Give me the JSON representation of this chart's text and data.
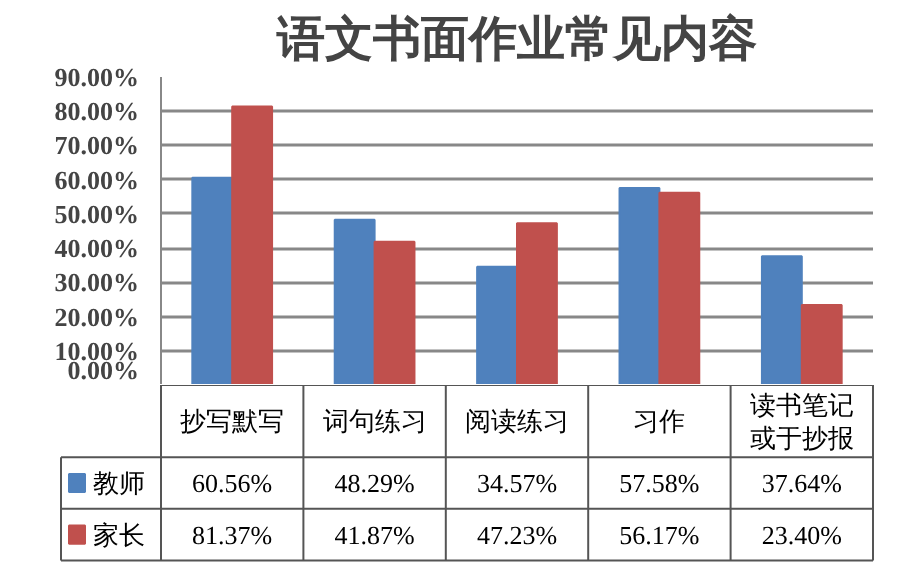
{
  "chart_data": {
    "type": "bar",
    "title": "语文书面作业常见内容",
    "categories": [
      "抄写默写",
      "词句练习",
      "阅读练习",
      "习作",
      "读书笔记或于抄报"
    ],
    "series": [
      {
        "name": "教师",
        "color": "#4f81bd",
        "values": [
          60.56,
          48.29,
          34.57,
          57.58,
          37.64
        ],
        "value_labels": [
          "60.56%",
          "48.29%",
          "34.57%",
          "57.58%",
          "37.64%"
        ]
      },
      {
        "name": "家长",
        "color": "#c0504d",
        "values": [
          81.37,
          41.87,
          47.23,
          56.17,
          23.4
        ],
        "value_labels": [
          "81.37%",
          "41.87%",
          "47.23%",
          "56.17%",
          "23.40%"
        ]
      }
    ],
    "ylim": [
      0,
      90
    ],
    "yticks": [
      {
        "value": 0,
        "label": "0.00%"
      },
      {
        "value": 10,
        "label": "10.00%"
      },
      {
        "value": 20,
        "label": "20.00%"
      },
      {
        "value": 30,
        "label": "30.00%"
      },
      {
        "value": 40,
        "label": "40.00%"
      },
      {
        "value": 50,
        "label": "50.00%"
      },
      {
        "value": 60,
        "label": "60.00%"
      },
      {
        "value": 70,
        "label": "70.00%"
      },
      {
        "value": 80,
        "label": "80.00%"
      },
      {
        "value": 90,
        "label": "90.00%"
      }
    ],
    "grid": "y",
    "legend": "bottom"
  }
}
